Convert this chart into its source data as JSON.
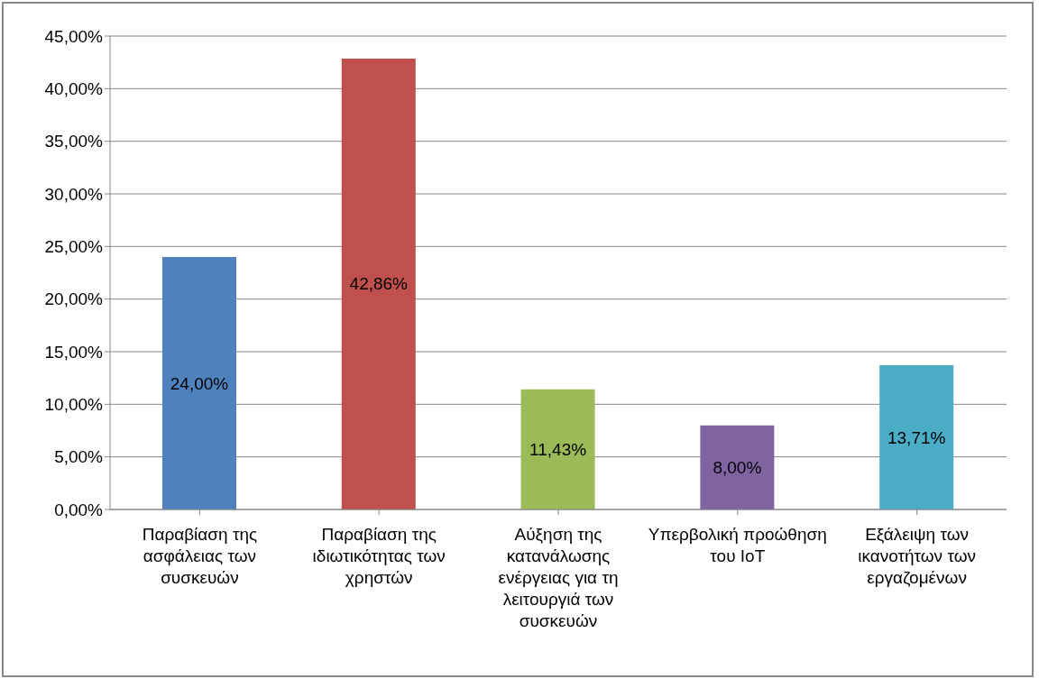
{
  "chart_data": {
    "type": "bar",
    "categories": [
      "Παραβίαση της ασφάλειας των συσκευών",
      "Παραβίαση της ιδιωτικότητας των χρηστών",
      "Αύξηση της κατανάλωσης ενέργειας για τη λειτουργιά των συσκευών",
      "Υπερβολική προώθηση του IoT",
      "Εξάλειψη των ικανοτήτων των εργαζομένων"
    ],
    "values": [
      24,
      42.86,
      11.43,
      8,
      13.71
    ],
    "colors": [
      "#4f81bd",
      "#c0504d",
      "#9bbb59",
      "#8064a2",
      "#4bacc6"
    ],
    "value_labels": [
      "24,00%",
      "42,86%",
      "11,43%",
      "8,00%",
      "13,71%"
    ],
    "ylim": [
      0,
      45
    ],
    "yticks": [
      {
        "value": 0,
        "label": "0,00%"
      },
      {
        "value": 5,
        "label": "5,00%"
      },
      {
        "value": 10,
        "label": "10,00%"
      },
      {
        "value": 15,
        "label": "15,00%"
      },
      {
        "value": 20,
        "label": "20,00%"
      },
      {
        "value": 25,
        "label": "25,00%"
      },
      {
        "value": 30,
        "label": "30,00%"
      },
      {
        "value": 35,
        "label": "35,00%"
      },
      {
        "value": 40,
        "label": "40,00%"
      },
      {
        "value": 45,
        "label": "45,00%"
      }
    ],
    "grid": "y",
    "legend": false
  }
}
